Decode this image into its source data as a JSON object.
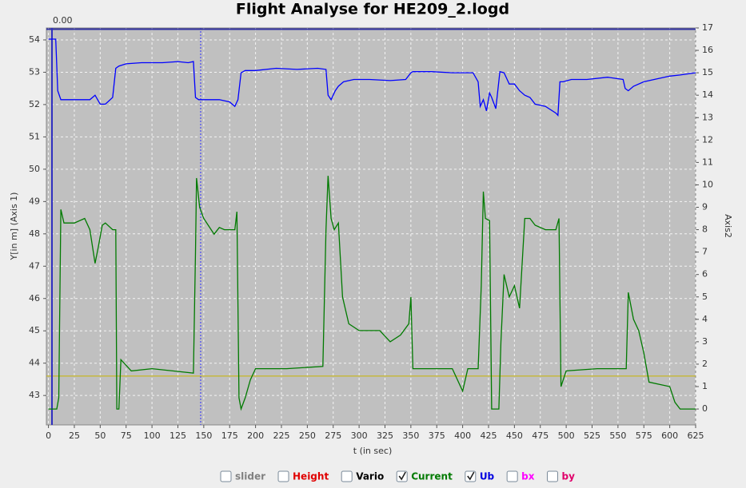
{
  "chart_data": {
    "type": "line",
    "title": "Flight Analyse for HE209_2.logd",
    "x_label": "t (in sec)",
    "y_label": "Y[in m] (Axis 1)",
    "y2_label": "Axis2",
    "slider_label": "0.00",
    "cursor_x": 147,
    "reference_y": 43.6,
    "xlim": [
      -2,
      625
    ],
    "xticks": [
      0,
      25,
      50,
      75,
      100,
      125,
      150,
      175,
      200,
      225,
      250,
      275,
      300,
      325,
      350,
      375,
      400,
      425,
      450,
      475,
      500,
      525,
      550,
      575,
      600,
      625
    ],
    "ylim": [
      42.09,
      54.37
    ],
    "yticks": [
      43,
      44,
      45,
      46,
      47,
      48,
      49,
      50,
      51,
      52,
      53,
      54
    ],
    "y2lim": [
      -0.71,
      17
    ],
    "y2ticks": [
      0,
      1,
      2,
      3,
      4,
      5,
      6,
      7,
      8,
      9,
      10,
      11,
      12,
      13,
      14,
      15,
      16,
      17
    ],
    "grid": true,
    "background": "#c0c0c0",
    "legend": [
      {
        "name": "slider",
        "color": "#808080",
        "checked": false
      },
      {
        "name": "Height",
        "color": "#e00000",
        "checked": false
      },
      {
        "name": "Vario",
        "color": "#000000",
        "checked": false
      },
      {
        "name": "Current",
        "color": "#007a00",
        "checked": true
      },
      {
        "name": "Ub",
        "color": "#0000e0",
        "checked": true
      },
      {
        "name": "bx",
        "color": "#ff00ff",
        "checked": false
      },
      {
        "name": "by",
        "color": "#e0006a",
        "checked": false
      }
    ],
    "series": [
      {
        "name": "Ub",
        "color": "#0000ff",
        "axis": "y2",
        "x": [
          0,
          7,
          9,
          12,
          20,
          30,
          40,
          45,
          50,
          55,
          62,
          65,
          68,
          75,
          90,
          110,
          125,
          135,
          140,
          142,
          145,
          155,
          165,
          175,
          180,
          183,
          186,
          190,
          200,
          220,
          240,
          260,
          268,
          270,
          273,
          277,
          280,
          285,
          295,
          310,
          330,
          345,
          350,
          352,
          370,
          390,
          410,
          415,
          417,
          420,
          423,
          426,
          428,
          432,
          436,
          440,
          445,
          450,
          455,
          460,
          465,
          470,
          480,
          490,
          492,
          494,
          497,
          505,
          520,
          540,
          555,
          557,
          560,
          565,
          575,
          585,
          600,
          610,
          625
        ],
        "values": [
          16.5,
          16.5,
          14.2,
          13.8,
          13.8,
          13.8,
          13.8,
          14.0,
          13.6,
          13.6,
          13.9,
          15.2,
          15.3,
          15.4,
          15.45,
          15.45,
          15.5,
          15.45,
          15.5,
          13.9,
          13.8,
          13.8,
          13.8,
          13.7,
          13.5,
          13.8,
          15.0,
          15.1,
          15.1,
          15.2,
          15.15,
          15.2,
          15.15,
          14.0,
          13.8,
          14.2,
          14.4,
          14.6,
          14.7,
          14.7,
          14.65,
          14.7,
          15.0,
          15.05,
          15.05,
          15.0,
          15.0,
          14.6,
          13.5,
          13.8,
          13.3,
          14.1,
          13.9,
          13.4,
          15.05,
          15.0,
          14.5,
          14.5,
          14.2,
          14.0,
          13.9,
          13.6,
          13.5,
          13.2,
          13.1,
          14.6,
          14.6,
          14.7,
          14.7,
          14.8,
          14.7,
          14.3,
          14.2,
          14.4,
          14.6,
          14.7,
          14.85,
          14.9,
          15.0
        ]
      },
      {
        "name": "Current",
        "color": "#007a00",
        "axis": "y2",
        "x": [
          0,
          8,
          10,
          12,
          15,
          25,
          35,
          40,
          45,
          48,
          52,
          55,
          62,
          65,
          66,
          68,
          70,
          80,
          100,
          120,
          140,
          142,
          143,
          146,
          150,
          160,
          165,
          170,
          180,
          182,
          184,
          186,
          190,
          195,
          200,
          230,
          265,
          268,
          270,
          273,
          276,
          280,
          284,
          290,
          300,
          320,
          330,
          340,
          348,
          350,
          352,
          360,
          390,
          400,
          405,
          415,
          418,
          420,
          422,
          426,
          428,
          430,
          435,
          437,
          440,
          445,
          450,
          455,
          460,
          465,
          470,
          480,
          490,
          493,
          495,
          500,
          530,
          555,
          558,
          560,
          565,
          570,
          575,
          580,
          590,
          600,
          605,
          610,
          625
        ],
        "values": [
          0,
          0,
          0.5,
          8.9,
          8.3,
          8.3,
          8.5,
          8.0,
          6.5,
          7.2,
          8.2,
          8.3,
          8.0,
          8.0,
          0,
          0,
          2.2,
          1.7,
          1.8,
          1.7,
          1.6,
          7.0,
          10.3,
          9.0,
          8.5,
          7.8,
          8.1,
          8.0,
          8.0,
          8.8,
          0.5,
          0,
          0.5,
          1.3,
          1.8,
          1.8,
          1.9,
          8.0,
          10.4,
          8.5,
          8.0,
          8.3,
          5.0,
          3.8,
          3.5,
          3.5,
          3.0,
          3.3,
          3.8,
          5.0,
          1.8,
          1.8,
          1.8,
          0.8,
          1.8,
          1.8,
          5.5,
          9.7,
          8.5,
          8.4,
          0,
          0,
          0,
          3.0,
          6.0,
          5.0,
          5.5,
          4.5,
          8.5,
          8.5,
          8.2,
          8.0,
          8.0,
          8.5,
          1.0,
          1.7,
          1.8,
          1.8,
          1.8,
          5.2,
          4.0,
          3.5,
          2.5,
          1.2,
          1.1,
          1.0,
          0.3,
          0,
          0
        ]
      }
    ]
  }
}
